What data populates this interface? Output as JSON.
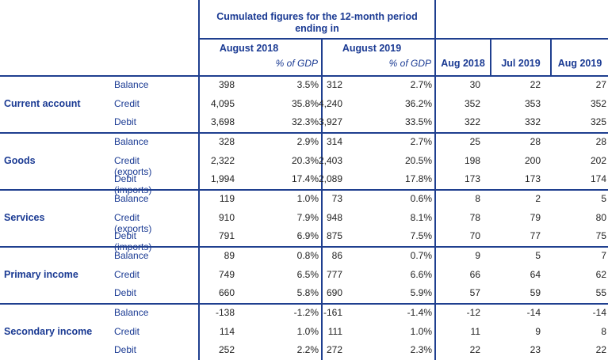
{
  "header": {
    "cumulated_title_line1": "Cumulated figures for the 12-month period",
    "cumulated_title_line2": "ending in",
    "period_a": "August 2018",
    "period_b": "August 2019",
    "pct_label": "% of GDP",
    "monthly": [
      "Aug 2018",
      "Jul 2019",
      "Aug 2019"
    ]
  },
  "groups": [
    {
      "label": "Current account",
      "rows": [
        {
          "label": "Balance",
          "values": [
            "398",
            "3.5%",
            "312",
            "2.7%",
            "30",
            "22",
            "27"
          ]
        },
        {
          "label": "Credit",
          "values": [
            "4,095",
            "35.8%",
            "4,240",
            "36.2%",
            "352",
            "353",
            "352"
          ]
        },
        {
          "label": "Debit",
          "values": [
            "3,698",
            "32.3%",
            "3,927",
            "33.5%",
            "322",
            "332",
            "325"
          ]
        }
      ]
    },
    {
      "label": "Goods",
      "rows": [
        {
          "label": "Balance",
          "values": [
            "328",
            "2.9%",
            "314",
            "2.7%",
            "25",
            "28",
            "28"
          ]
        },
        {
          "label": "Credit (exports)",
          "values": [
            "2,322",
            "20.3%",
            "2,403",
            "20.5%",
            "198",
            "200",
            "202"
          ]
        },
        {
          "label": "Debit (imports)",
          "values": [
            "1,994",
            "17.4%",
            "2,089",
            "17.8%",
            "173",
            "173",
            "174"
          ]
        }
      ]
    },
    {
      "label": "Services",
      "rows": [
        {
          "label": "Balance",
          "values": [
            "119",
            "1.0%",
            "73",
            "0.6%",
            "8",
            "2",
            "5"
          ]
        },
        {
          "label": "Credit (exports)",
          "values": [
            "910",
            "7.9%",
            "948",
            "8.1%",
            "78",
            "79",
            "80"
          ]
        },
        {
          "label": "Debit (imports)",
          "values": [
            "791",
            "6.9%",
            "875",
            "7.5%",
            "70",
            "77",
            "75"
          ]
        }
      ]
    },
    {
      "label": "Primary income",
      "rows": [
        {
          "label": "Balance",
          "values": [
            "89",
            "0.8%",
            "86",
            "0.7%",
            "9",
            "5",
            "7"
          ]
        },
        {
          "label": "Credit",
          "values": [
            "749",
            "6.5%",
            "777",
            "6.6%",
            "66",
            "64",
            "62"
          ]
        },
        {
          "label": "Debit",
          "values": [
            "660",
            "5.8%",
            "690",
            "5.9%",
            "57",
            "59",
            "55"
          ]
        }
      ]
    },
    {
      "label": "Secondary income",
      "rows": [
        {
          "label": "Balance",
          "values": [
            "-138",
            "-1.2%",
            "-161",
            "-1.4%",
            "-12",
            "-14",
            "-14"
          ]
        },
        {
          "label": "Credit",
          "values": [
            "114",
            "1.0%",
            "111",
            "1.0%",
            "11",
            "9",
            "8"
          ]
        },
        {
          "label": "Debit",
          "values": [
            "252",
            "2.2%",
            "272",
            "2.3%",
            "22",
            "23",
            "22"
          ]
        }
      ]
    }
  ]
}
